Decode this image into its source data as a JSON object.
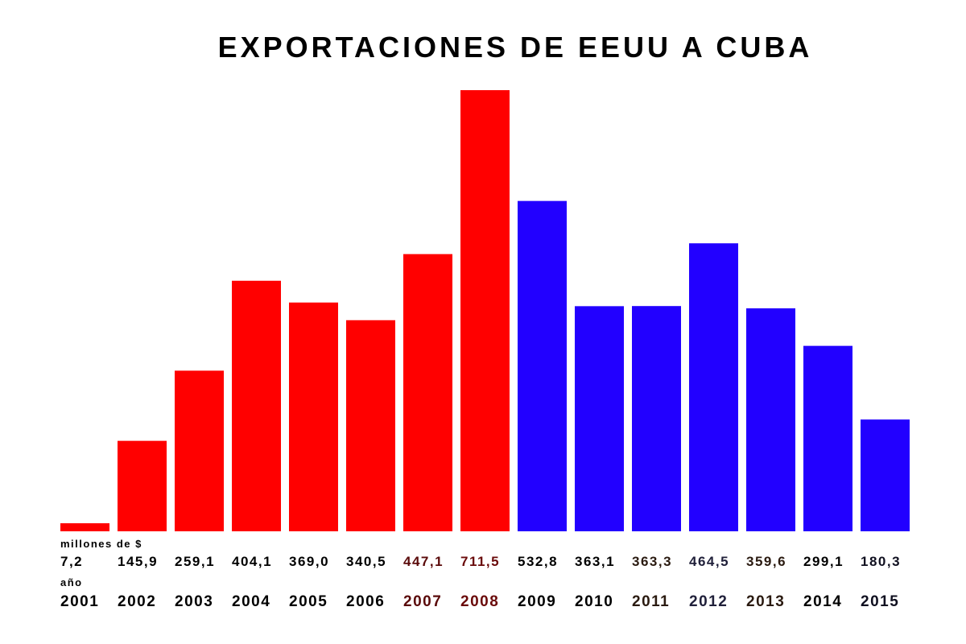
{
  "chart_data": {
    "type": "bar",
    "title": "EXPORTACIONES DE EEUU A CUBA",
    "value_label": "millones de $",
    "category_label": "año",
    "categories": [
      "2001",
      "2002",
      "2003",
      "2004",
      "2005",
      "2006",
      "2007",
      "2008",
      "2009",
      "2010",
      "2011",
      "2012",
      "2013",
      "2014",
      "2015"
    ],
    "values": [
      7.2,
      145.9,
      259.1,
      404.1,
      369.0,
      340.5,
      447.1,
      711.5,
      532.8,
      363.1,
      363.3,
      464.5,
      359.6,
      299.1,
      180.3
    ],
    "value_texts": [
      "7,2",
      "145,9",
      "259,1",
      "404,1",
      "369,0",
      "340,5",
      "447,1",
      "711,5",
      "532,8",
      "363,1",
      "363,3",
      "464,5",
      "359,6",
      "299,1",
      "180,3"
    ],
    "ylim": [
      0,
      711.5
    ],
    "grid": false,
    "bar_colors": [
      "#ff0000",
      "#ff0000",
      "#ff0000",
      "#ff0000",
      "#ff0000",
      "#ff0000",
      "#ff0000",
      "#ff0000",
      "#2200ff",
      "#2200ff",
      "#2200ff",
      "#2200ff",
      "#2200ff",
      "#2200ff",
      "#2200ff"
    ],
    "label_colors": [
      "#000000",
      "#000000",
      "#000000",
      "#000000",
      "#000000",
      "#000000",
      "#5a0a0a",
      "#6a0a0a",
      "#000000",
      "#000000",
      "#2a1a10",
      "#20203a",
      "#2a1a10",
      "#000000",
      "#101020"
    ]
  }
}
